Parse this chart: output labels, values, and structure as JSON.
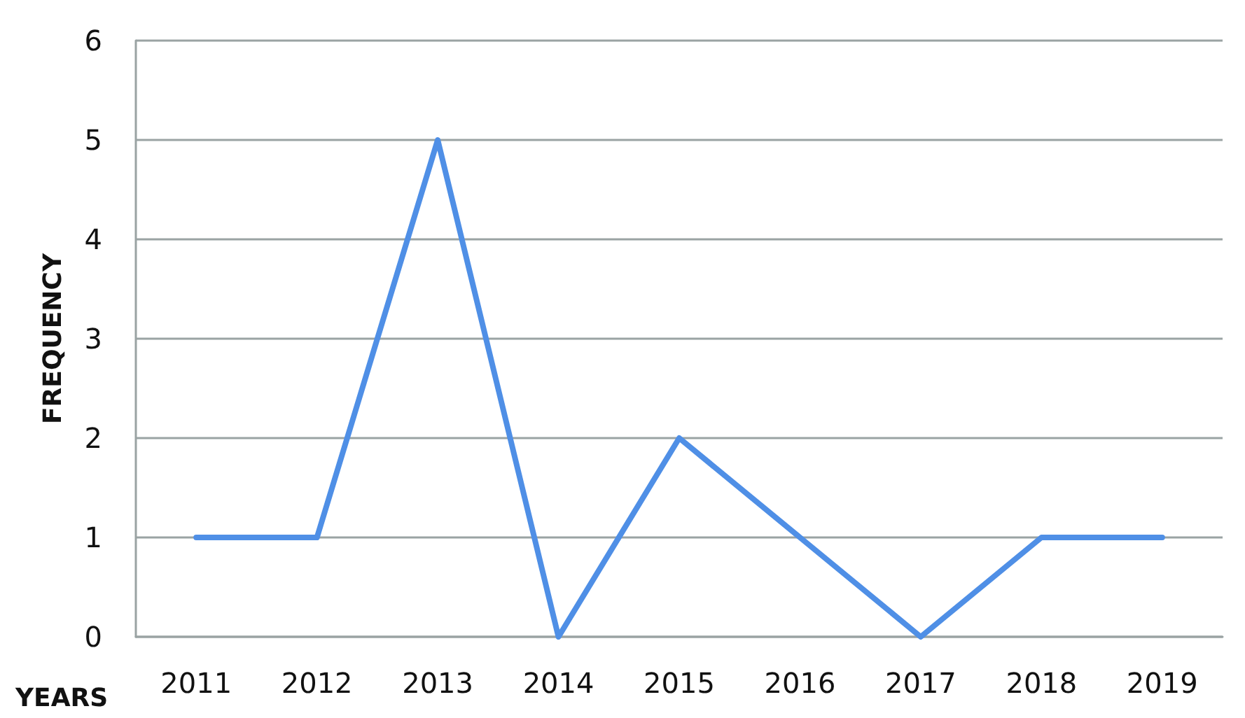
{
  "chart_data": {
    "type": "line",
    "xlabel": "YEARS",
    "ylabel": "FREQUENCY",
    "categories": [
      "2011",
      "2012",
      "2013",
      "2014",
      "2015",
      "2016",
      "2017",
      "2018",
      "2019"
    ],
    "series": [
      {
        "color": "#4f8fe6",
        "values": [
          1,
          1,
          5,
          0,
          2,
          1,
          0,
          1,
          1
        ]
      }
    ],
    "ylim": [
      0,
      6
    ],
    "yticks": [
      0,
      1,
      2,
      3,
      4,
      5,
      6
    ],
    "grid": "y",
    "marker": "none",
    "line_style": "solid"
  }
}
